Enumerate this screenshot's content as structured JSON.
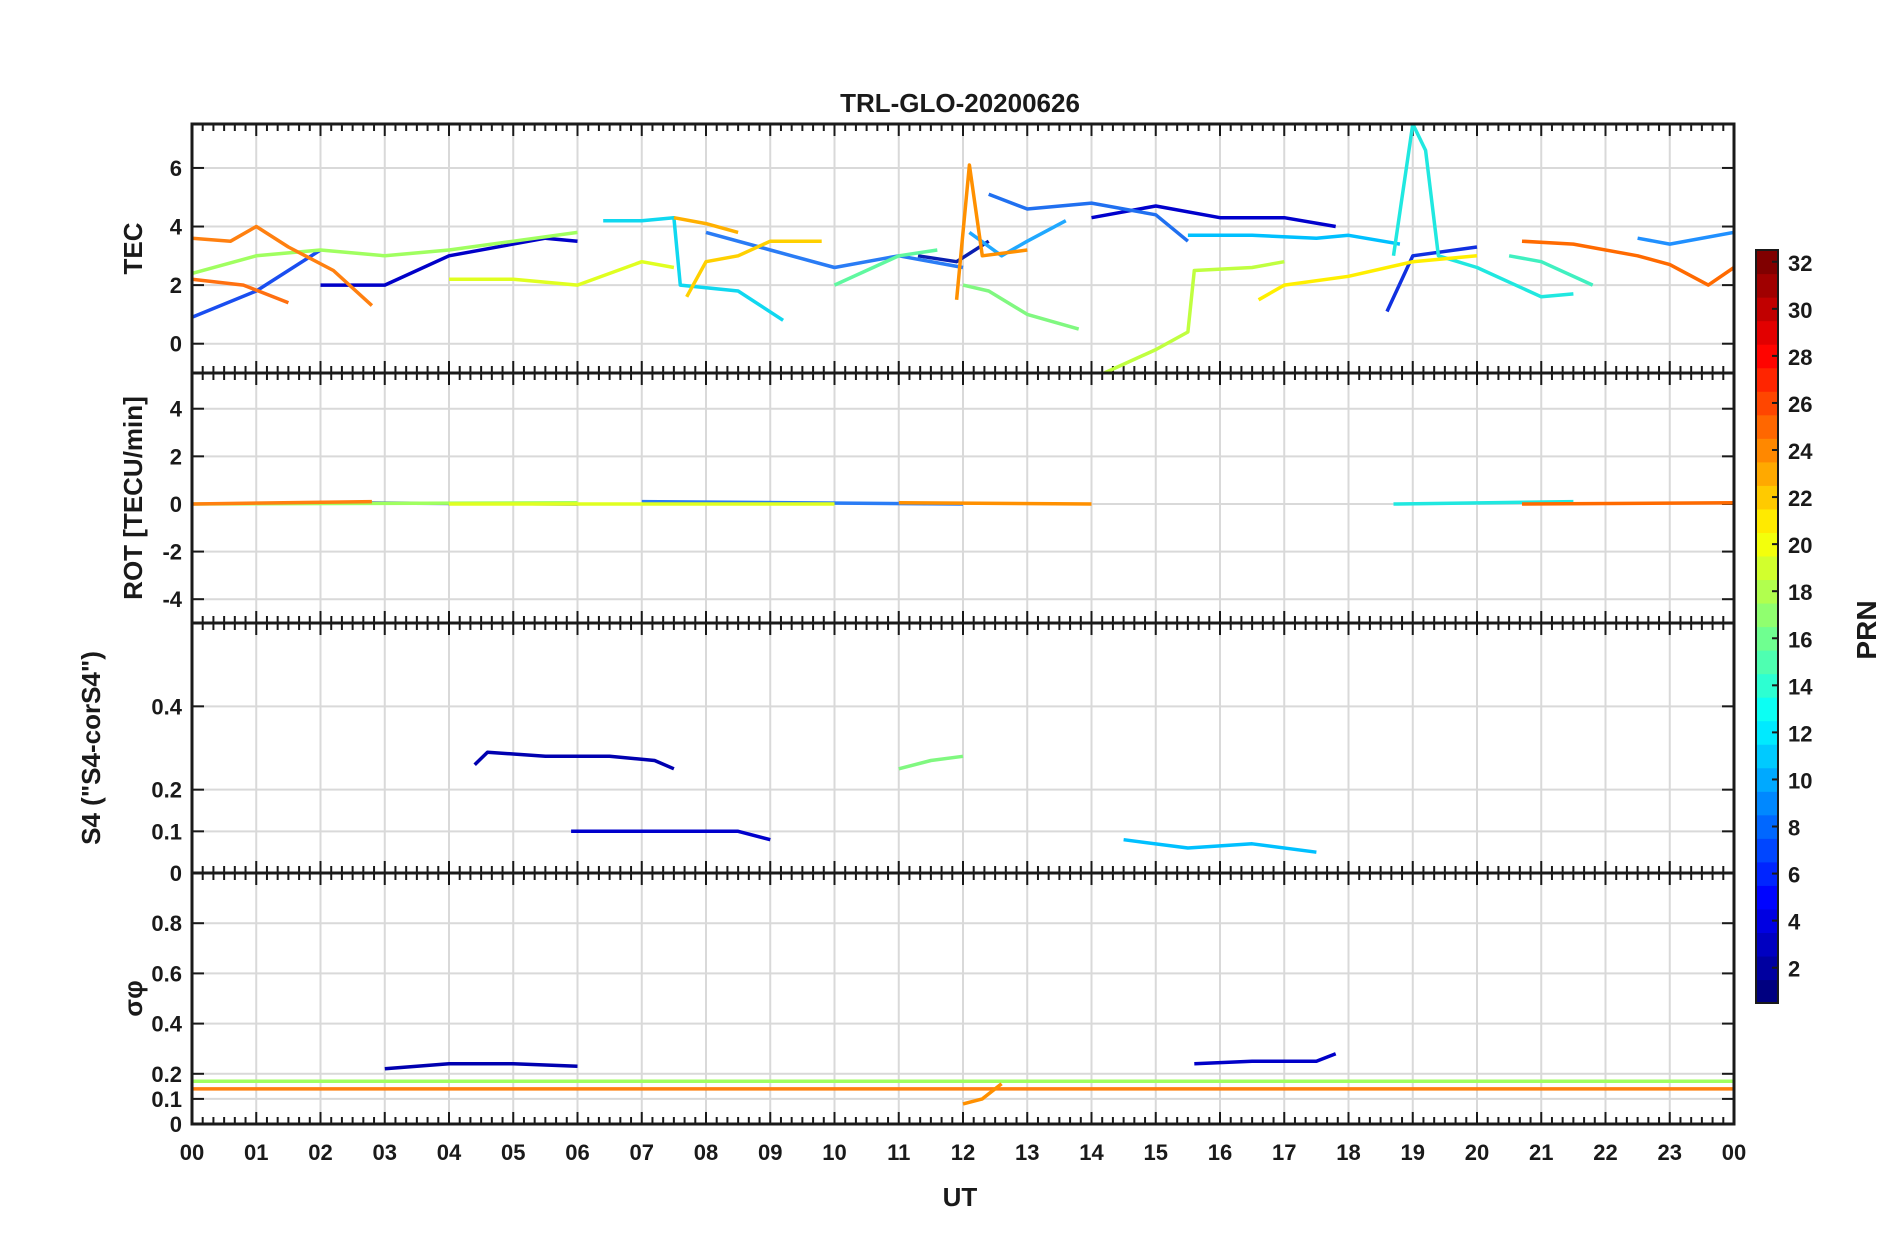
{
  "chart_data": {
    "type": "line",
    "title": "TRL-GLO-20200626",
    "xlabel": "UT",
    "x_tick_labels": [
      "00",
      "01",
      "02",
      "03",
      "04",
      "05",
      "06",
      "07",
      "08",
      "09",
      "10",
      "11",
      "12",
      "13",
      "14",
      "15",
      "16",
      "17",
      "18",
      "19",
      "20",
      "21",
      "22",
      "23",
      "00"
    ],
    "xlim": [
      0,
      24
    ],
    "colorbar": {
      "label": "PRN",
      "range": [
        1,
        32
      ],
      "tick_labels": [
        "2",
        "4",
        "6",
        "8",
        "10",
        "12",
        "14",
        "16",
        "18",
        "20",
        "22",
        "24",
        "26",
        "28",
        "30",
        "32"
      ],
      "tick_values": [
        2,
        4,
        6,
        8,
        10,
        12,
        14,
        16,
        18,
        20,
        22,
        24,
        26,
        28,
        30,
        32
      ],
      "colormap": "jet"
    },
    "panels": [
      {
        "id": "tec",
        "ylabel": "TEC",
        "ylim": [
          -1,
          7.5
        ],
        "y_tick_values": [
          0,
          2,
          4,
          6
        ],
        "y_tick_labels": [
          "0",
          "2",
          "4",
          "6"
        ],
        "series": [
          {
            "prn": 2,
            "color": "#0a1fb0",
            "points": [
              [
                11.3,
                3.0
              ],
              [
                11.9,
                2.8
              ],
              [
                12.4,
                3.5
              ]
            ]
          },
          {
            "prn": 3,
            "color": "#0000c8",
            "points": [
              [
                2.0,
                2.0
              ],
              [
                3.0,
                2.0
              ],
              [
                4.0,
                3.0
              ],
              [
                5.5,
                3.6
              ],
              [
                6.0,
                3.5
              ]
            ]
          },
          {
            "prn": 4,
            "color": "#0000cc",
            "points": [
              [
                14.0,
                4.3
              ],
              [
                15.0,
                4.7
              ],
              [
                16.0,
                4.3
              ],
              [
                17.0,
                4.3
              ],
              [
                17.8,
                4.0
              ]
            ]
          },
          {
            "prn": 5,
            "color": "#1030e0",
            "points": [
              [
                18.6,
                1.1
              ],
              [
                19.0,
                3.0
              ],
              [
                20.0,
                3.3
              ]
            ]
          },
          {
            "prn": 6,
            "color": "#1a4ef0",
            "points": [
              [
                0.0,
                0.9
              ],
              [
                1.0,
                1.8
              ],
              [
                2.0,
                3.2
              ]
            ]
          },
          {
            "prn": 7,
            "color": "#2070f0",
            "points": [
              [
                12.4,
                5.1
              ],
              [
                13.0,
                4.6
              ],
              [
                14.0,
                4.8
              ],
              [
                15.0,
                4.4
              ],
              [
                15.5,
                3.5
              ]
            ]
          },
          {
            "prn": 8,
            "color": "#2a7cf5",
            "points": [
              [
                8.0,
                3.8
              ],
              [
                9.0,
                3.2
              ],
              [
                10.0,
                2.6
              ],
              [
                11.0,
                3.0
              ],
              [
                12.0,
                2.6
              ]
            ]
          },
          {
            "prn": 9,
            "color": "#2090ff",
            "points": [
              [
                22.5,
                3.6
              ],
              [
                23.0,
                3.4
              ],
              [
                24.0,
                3.8
              ]
            ]
          },
          {
            "prn": 10,
            "color": "#20a8ff",
            "points": [
              [
                12.1,
                3.8
              ],
              [
                12.6,
                3.0
              ],
              [
                13.0,
                3.5
              ],
              [
                13.6,
                4.2
              ]
            ]
          },
          {
            "prn": 11,
            "color": "#00c0ff",
            "points": [
              [
                15.5,
                3.7
              ],
              [
                16.5,
                3.7
              ],
              [
                17.5,
                3.6
              ],
              [
                18.0,
                3.7
              ],
              [
                18.8,
                3.4
              ]
            ]
          },
          {
            "prn": 12,
            "color": "#10d8f0",
            "points": [
              [
                6.4,
                4.2
              ],
              [
                7.0,
                4.2
              ],
              [
                7.5,
                4.3
              ],
              [
                7.6,
                2.0
              ],
              [
                8.5,
                1.8
              ],
              [
                9.2,
                0.8
              ]
            ]
          },
          {
            "prn": 13,
            "color": "#20e8e0",
            "points": [
              [
                18.7,
                3.0
              ],
              [
                19.0,
                7.5
              ],
              [
                19.2,
                6.6
              ],
              [
                19.4,
                3.0
              ],
              [
                20.0,
                2.6
              ],
              [
                21.0,
                1.6
              ],
              [
                21.5,
                1.7
              ]
            ]
          },
          {
            "prn": 14,
            "color": "#40f0c0",
            "points": [
              [
                20.5,
                3.0
              ],
              [
                21.0,
                2.8
              ],
              [
                21.8,
                2.0
              ]
            ]
          },
          {
            "prn": 15,
            "color": "#60f8a0",
            "points": [
              [
                10.0,
                2.0
              ],
              [
                11.0,
                3.0
              ],
              [
                11.6,
                3.2
              ]
            ]
          },
          {
            "prn": 16,
            "color": "#80f880",
            "points": [
              [
                12.0,
                2.0
              ],
              [
                12.4,
                1.8
              ],
              [
                13.0,
                1.0
              ],
              [
                13.8,
                0.5
              ]
            ]
          },
          {
            "prn": 17,
            "color": "#a0ff60",
            "points": [
              [
                0.0,
                2.4
              ],
              [
                1.0,
                3.0
              ],
              [
                2.0,
                3.2
              ],
              [
                3.0,
                3.0
              ],
              [
                4.0,
                3.2
              ],
              [
                5.0,
                3.5
              ],
              [
                6.0,
                3.8
              ]
            ]
          },
          {
            "prn": 18,
            "color": "#c0ff40",
            "points": [
              [
                14.2,
                -1.0
              ],
              [
                15.0,
                -0.2
              ],
              [
                15.5,
                0.4
              ],
              [
                15.6,
                2.5
              ],
              [
                16.5,
                2.6
              ],
              [
                17.0,
                2.8
              ]
            ]
          },
          {
            "prn": 19,
            "color": "#e0ff20",
            "points": [
              [
                4.0,
                2.2
              ],
              [
                5.0,
                2.2
              ],
              [
                6.0,
                2.0
              ],
              [
                7.0,
                2.8
              ],
              [
                7.5,
                2.6
              ]
            ]
          },
          {
            "prn": 20,
            "color": "#ffef00",
            "points": [
              [
                16.6,
                1.5
              ],
              [
                17.0,
                2.0
              ],
              [
                18.0,
                2.3
              ],
              [
                19.0,
                2.8
              ],
              [
                20.0,
                3.0
              ]
            ]
          },
          {
            "prn": 21,
            "color": "#ffd000",
            "points": [
              [
                7.7,
                1.6
              ],
              [
                8.0,
                2.8
              ],
              [
                8.5,
                3.0
              ],
              [
                9.0,
                3.5
              ],
              [
                9.8,
                3.5
              ]
            ]
          },
          {
            "prn": 22,
            "color": "#ffb000",
            "points": [
              [
                7.5,
                4.3
              ],
              [
                8.0,
                4.1
              ],
              [
                8.5,
                3.8
              ]
            ]
          },
          {
            "prn": 23,
            "color": "#ff9000",
            "points": [
              [
                11.9,
                1.5
              ],
              [
                12.1,
                6.1
              ],
              [
                12.3,
                3.0
              ],
              [
                13.0,
                3.2
              ]
            ]
          },
          {
            "prn": 24,
            "color": "#ff8010",
            "points": [
              [
                0.0,
                3.6
              ],
              [
                0.6,
                3.5
              ],
              [
                1.0,
                4.0
              ],
              [
                1.5,
                3.3
              ],
              [
                2.2,
                2.5
              ],
              [
                2.8,
                1.3
              ]
            ]
          },
          {
            "prn": 25,
            "color": "#ff7010",
            "points": [
              [
                0.0,
                2.2
              ],
              [
                0.8,
                2.0
              ],
              [
                1.5,
                1.4
              ]
            ]
          },
          {
            "prn": 26,
            "color": "#ff6a00",
            "points": [
              [
                20.7,
                3.5
              ],
              [
                21.5,
                3.4
              ],
              [
                22.5,
                3.0
              ],
              [
                23.0,
                2.7
              ],
              [
                23.6,
                2.0
              ],
              [
                24.0,
                2.6
              ]
            ]
          }
        ]
      },
      {
        "id": "rot",
        "ylabel": "ROT [TECU/min]",
        "ylim": [
          -5,
          5.5
        ],
        "y_tick_values": [
          -4,
          -2,
          0,
          2,
          4
        ],
        "y_tick_labels": [
          "-4",
          "-2",
          "0",
          "2",
          "4"
        ],
        "series": [
          {
            "prn": 3,
            "color": "#0000c8",
            "points": [
              [
                2.0,
                0.05
              ],
              [
                6.0,
                0.0
              ]
            ]
          },
          {
            "prn": 8,
            "color": "#2a7cf5",
            "points": [
              [
                7.0,
                0.1
              ],
              [
                12.0,
                0.0
              ]
            ]
          },
          {
            "prn": 13,
            "color": "#20e8e0",
            "points": [
              [
                18.7,
                0.0
              ],
              [
                21.5,
                0.1
              ]
            ]
          },
          {
            "prn": 17,
            "color": "#a0ff60",
            "points": [
              [
                0.0,
                0.0
              ],
              [
                6.0,
                0.05
              ]
            ]
          },
          {
            "prn": 19,
            "color": "#e0ff20",
            "points": [
              [
                4.0,
                0.0
              ],
              [
                10.0,
                0.0
              ]
            ]
          },
          {
            "prn": 23,
            "color": "#ff9000",
            "points": [
              [
                11.0,
                0.05
              ],
              [
                14.0,
                0.0
              ]
            ]
          },
          {
            "prn": 24,
            "color": "#ff8010",
            "points": [
              [
                0.0,
                0.0
              ],
              [
                2.8,
                0.1
              ]
            ]
          },
          {
            "prn": 26,
            "color": "#ff6a00",
            "points": [
              [
                20.7,
                0.0
              ],
              [
                24.0,
                0.05
              ]
            ]
          }
        ]
      },
      {
        "id": "s4",
        "ylabel": "S4 (\"S4-corS4\")",
        "ylim": [
          0,
          0.6
        ],
        "y_tick_values": [
          0,
          0.1,
          0.2,
          0.4
        ],
        "y_tick_labels": [
          "0",
          "0.1",
          "0.2",
          "0.4"
        ],
        "series": [
          {
            "prn": 2,
            "color": "#0000b0",
            "points": [
              [
                4.4,
                0.26
              ],
              [
                4.6,
                0.29
              ],
              [
                5.5,
                0.28
              ],
              [
                6.5,
                0.28
              ],
              [
                7.2,
                0.27
              ],
              [
                7.5,
                0.25
              ]
            ]
          },
          {
            "prn": 16,
            "color": "#80f880",
            "points": [
              [
                11.0,
                0.25
              ],
              [
                11.5,
                0.27
              ],
              [
                12.0,
                0.28
              ]
            ]
          },
          {
            "prn": 4,
            "color": "#0000cc",
            "points": [
              [
                5.9,
                0.1
              ],
              [
                6.5,
                0.1
              ],
              [
                7.5,
                0.1
              ],
              [
                8.5,
                0.1
              ],
              [
                9.0,
                0.08
              ]
            ]
          },
          {
            "prn": 11,
            "color": "#00c0ff",
            "points": [
              [
                14.5,
                0.08
              ],
              [
                15.5,
                0.06
              ],
              [
                16.5,
                0.07
              ],
              [
                17.5,
                0.05
              ]
            ]
          }
        ]
      },
      {
        "id": "sigma_phi",
        "ylabel": "σφ",
        "ylim": [
          0,
          1.0
        ],
        "y_tick_values": [
          0,
          0.1,
          0.2,
          0.4,
          0.6,
          0.8
        ],
        "y_tick_labels": [
          "0",
          "0.1",
          "0.2",
          "0.4",
          "0.6",
          "0.8"
        ],
        "series": [
          {
            "prn": 2,
            "color": "#0000b0",
            "points": [
              [
                3.0,
                0.22
              ],
              [
                4.0,
                0.24
              ],
              [
                5.0,
                0.24
              ],
              [
                6.0,
                0.23
              ]
            ]
          },
          {
            "prn": 3,
            "color": "#0000c8",
            "points": [
              [
                15.6,
                0.24
              ],
              [
                16.5,
                0.25
              ],
              [
                17.5,
                0.25
              ],
              [
                17.8,
                0.28
              ]
            ]
          },
          {
            "prn": 17,
            "color": "#a0ff60",
            "points": [
              [
                0.0,
                0.17
              ],
              [
                12.0,
                0.17
              ],
              [
                24.0,
                0.17
              ]
            ]
          },
          {
            "prn": 24,
            "color": "#ff8010",
            "points": [
              [
                0.0,
                0.14
              ],
              [
                12.0,
                0.14
              ],
              [
                24.0,
                0.14
              ]
            ]
          },
          {
            "prn": 23,
            "color": "#ff9000",
            "points": [
              [
                12.0,
                0.08
              ],
              [
                12.3,
                0.1
              ],
              [
                12.6,
                0.16
              ]
            ]
          }
        ]
      }
    ]
  }
}
